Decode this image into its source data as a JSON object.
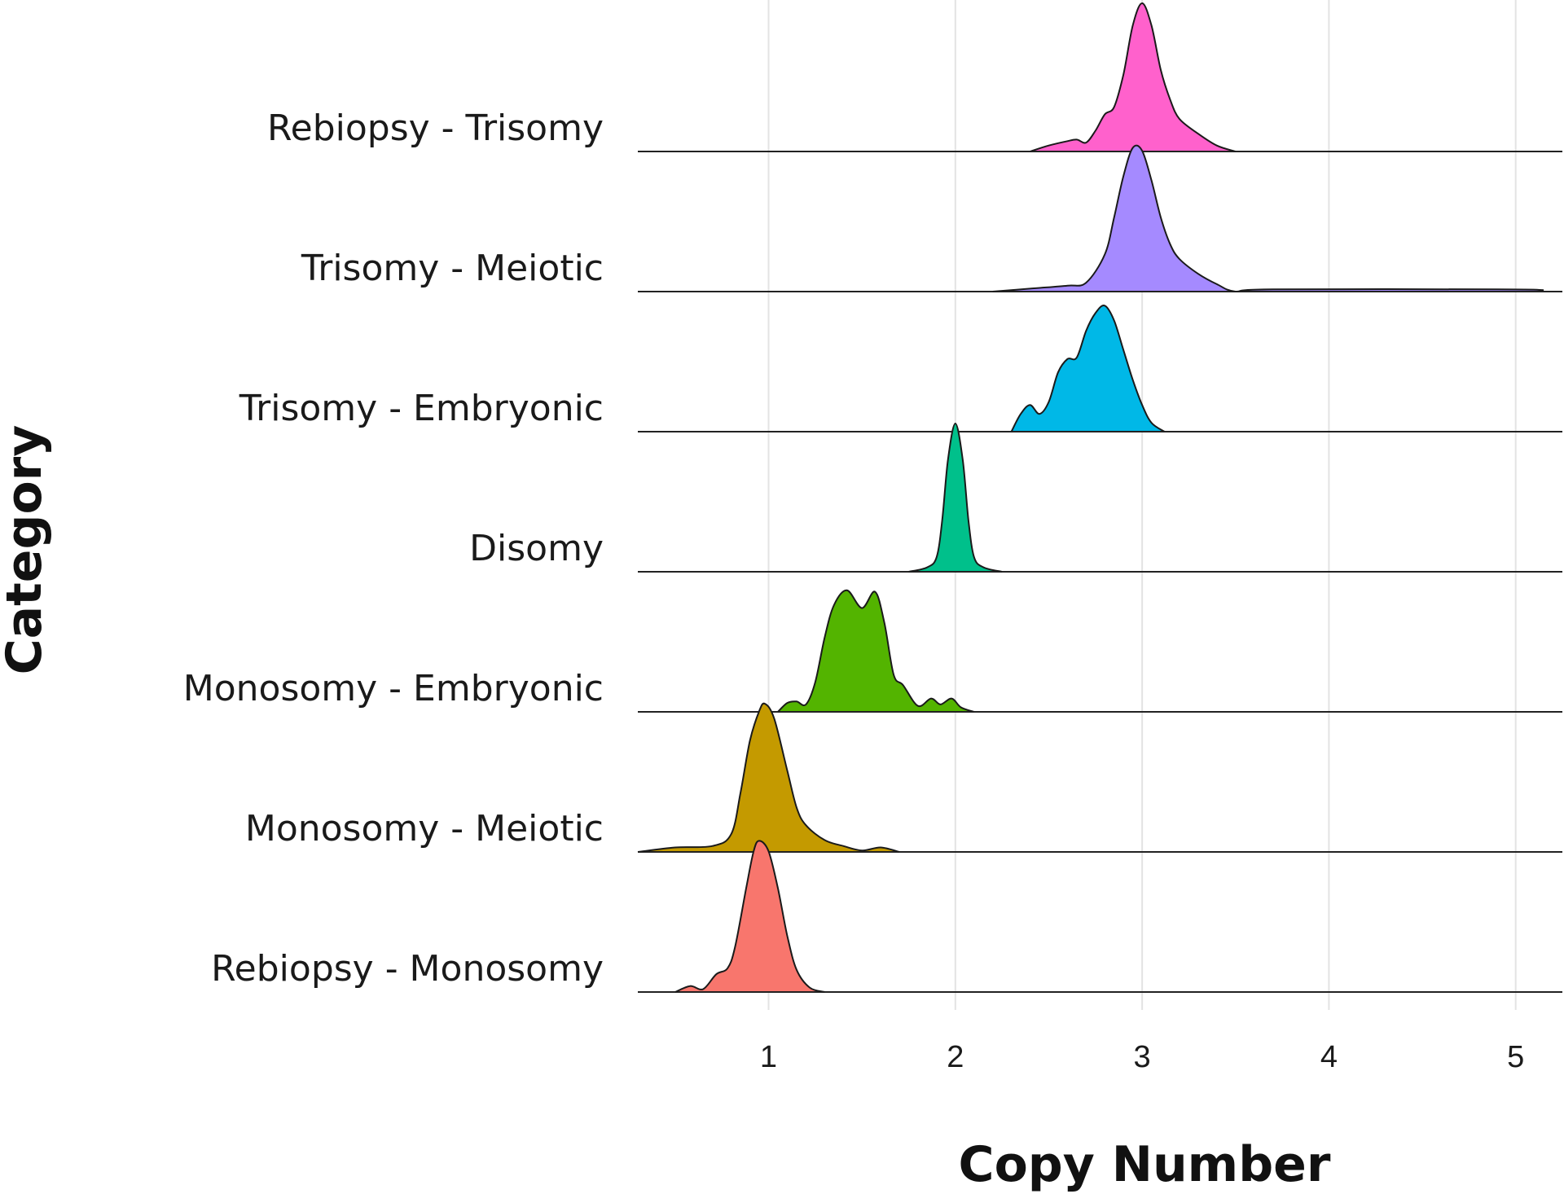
{
  "chart_data": {
    "type": "ridgeline",
    "xlabel": "Copy Number",
    "ylabel": "Category",
    "xlim": [
      0.3,
      5.25
    ],
    "x_ticks": [
      1,
      2,
      3,
      4,
      5
    ],
    "grid": true,
    "legend": "none",
    "categories": [
      "Rebiopsy - Trisomy",
      "Trisomy - Meiotic",
      "Trisomy - Embryonic",
      "Disomy",
      "Monosomy - Embryonic",
      "Monosomy - Meiotic",
      "Rebiopsy - Monosomy"
    ],
    "series": [
      {
        "name": "Rebiopsy - Trisomy",
        "color": "#FF61CC",
        "x": [
          2.4,
          2.5,
          2.6,
          2.65,
          2.7,
          2.75,
          2.8,
          2.85,
          2.9,
          2.95,
          3.0,
          3.05,
          3.1,
          3.15,
          3.2,
          3.3,
          3.4,
          3.5
        ],
        "density": [
          0,
          0.04,
          0.07,
          0.08,
          0.06,
          0.14,
          0.25,
          0.3,
          0.52,
          0.85,
          1.0,
          0.85,
          0.55,
          0.35,
          0.22,
          0.12,
          0.04,
          0
        ]
      },
      {
        "name": "Trisomy - Meiotic",
        "color": "#A58AFF",
        "x": [
          2.2,
          2.4,
          2.6,
          2.7,
          2.8,
          2.85,
          2.9,
          2.95,
          3.0,
          3.05,
          3.1,
          3.15,
          3.2,
          3.3,
          3.4,
          3.5,
          3.7,
          4.9,
          5.15
        ],
        "density": [
          0,
          0.02,
          0.04,
          0.06,
          0.25,
          0.5,
          0.78,
          0.97,
          0.95,
          0.75,
          0.5,
          0.32,
          0.22,
          0.12,
          0.05,
          0,
          0.015,
          0.015,
          0.01
        ]
      },
      {
        "name": "Trisomy - Embryonic",
        "color": "#00B8E7",
        "x": [
          2.3,
          2.35,
          2.4,
          2.45,
          2.5,
          2.55,
          2.6,
          2.65,
          2.7,
          2.75,
          2.8,
          2.85,
          2.9,
          2.95,
          3.0,
          3.05,
          3.12
        ],
        "density": [
          0,
          0.12,
          0.18,
          0.12,
          0.2,
          0.4,
          0.49,
          0.5,
          0.68,
          0.8,
          0.85,
          0.75,
          0.55,
          0.35,
          0.18,
          0.06,
          0
        ]
      },
      {
        "name": "Disomy",
        "color": "#00C08B",
        "x": [
          1.75,
          1.85,
          1.9,
          1.93,
          1.96,
          2.0,
          2.04,
          2.07,
          2.1,
          2.15,
          2.25
        ],
        "density": [
          0,
          0.03,
          0.1,
          0.35,
          0.75,
          1.0,
          0.75,
          0.35,
          0.1,
          0.03,
          0
        ]
      },
      {
        "name": "Monosomy - Embryonic",
        "color": "#53B400",
        "x": [
          1.05,
          1.1,
          1.15,
          1.2,
          1.25,
          1.3,
          1.35,
          1.42,
          1.5,
          1.57,
          1.62,
          1.67,
          1.72,
          1.8,
          1.87,
          1.92,
          1.98,
          2.03,
          2.1
        ],
        "density": [
          0,
          0.06,
          0.07,
          0.05,
          0.2,
          0.5,
          0.72,
          0.82,
          0.7,
          0.81,
          0.6,
          0.25,
          0.18,
          0.04,
          0.09,
          0.05,
          0.09,
          0.03,
          0
        ]
      },
      {
        "name": "Monosomy - Meiotic",
        "color": "#C49A00",
        "x": [
          0.3,
          0.5,
          0.7,
          0.8,
          0.85,
          0.9,
          0.95,
          0.98,
          1.03,
          1.1,
          1.15,
          1.2,
          1.3,
          1.4,
          1.5,
          1.6,
          1.7
        ],
        "density": [
          0,
          0.03,
          0.04,
          0.12,
          0.4,
          0.75,
          0.95,
          1.0,
          0.9,
          0.55,
          0.3,
          0.18,
          0.08,
          0.04,
          0.01,
          0.03,
          0
        ]
      },
      {
        "name": "Rebiopsy - Monosomy",
        "color": "#F8766D",
        "x": [
          0.5,
          0.58,
          0.65,
          0.72,
          0.78,
          0.82,
          0.88,
          0.92,
          0.95,
          1.0,
          1.05,
          1.1,
          1.15,
          1.22,
          1.3
        ],
        "density": [
          0,
          0.04,
          0.02,
          0.12,
          0.16,
          0.3,
          0.7,
          0.95,
          1.02,
          0.95,
          0.7,
          0.38,
          0.15,
          0.03,
          0
        ]
      }
    ]
  }
}
